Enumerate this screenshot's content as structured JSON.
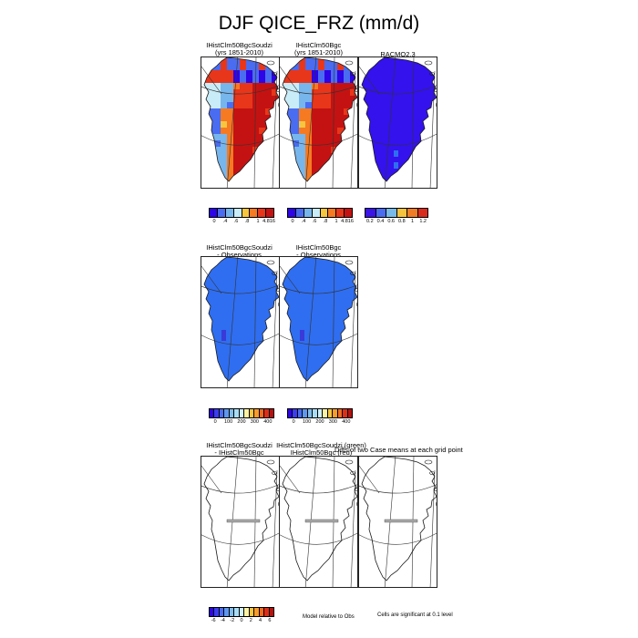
{
  "figure_title": "DJF QICE_FRZ (mm/d)",
  "colors": {
    "outline": "#1a1a1a",
    "grid": "#333333",
    "scale_a": [
      "#2d05e6",
      "#4a6cf0",
      "#77b6ec",
      "#c8ecf8",
      "#f7c63f",
      "#f57a22",
      "#e8361a",
      "#c41212"
    ],
    "scale_b": [
      "#3b14e8",
      "#4a6cf0",
      "#78baea",
      "#f5c33d",
      "#f07b25",
      "#d92b1c"
    ],
    "diff": "#2f6ef0",
    "racmo": "#3312ee",
    "racmo_spot": "#2f6ef0",
    "scale_diff": [
      "#2d05e6",
      "#3c3cf0",
      "#4a6cf0",
      "#5f97ef",
      "#80bdea",
      "#a8dcf5",
      "#d2f1fb",
      "#fbf2a3",
      "#f7c63f",
      "#f79b2b",
      "#f06a21",
      "#dc2e17",
      "#b4120f"
    ],
    "scale_sig": [
      "#2d05e6",
      "#3c3cf0",
      "#4a6cf0",
      "#5f97ef",
      "#80bdea",
      "#a8dcf5",
      "#d2f1fb",
      "#fbf2a3",
      "#f7c63f",
      "#f79b2b",
      "#f06a21",
      "#dc2e17",
      "#b4120f"
    ]
  },
  "panels": {
    "r1c1": {
      "title_lines": [
        "IHistClm50BgcSoudzi",
        "(yrs 1851-2010)"
      ]
    },
    "r1c2": {
      "title_lines": [
        "IHistClm50Bgc",
        "(yrs 1851-2010)"
      ]
    },
    "r1c3": {
      "title_lines": [
        "RACMO2.3"
      ]
    },
    "r2c1": {
      "title_lines": [
        "IHistClm50BgcSoudzi",
        "- Observations"
      ]
    },
    "r2c2": {
      "title_lines": [
        "IHistClm50Bgc",
        "- Observations"
      ]
    },
    "r3c1": {
      "title_lines": [
        "IHistClm50BgcSoudzi",
        "- IHistClm50Bgc"
      ]
    },
    "r3c2": {
      "title_lines": [
        "IHistClm50BgcSoudzi (green)",
        "IHistClm50Bgc (red)"
      ]
    },
    "r3c3": {
      "title_lines": []
    }
  },
  "overlay_text": "Diffs of two Case means at each grid point",
  "colorbars": {
    "cb1": {
      "ticks": [
        "0",
        ".4",
        ".6",
        ".8",
        "1",
        "4.816"
      ]
    },
    "cb2": {
      "ticks": [
        "0",
        ".4",
        ".6",
        ".8",
        "1",
        "4.816"
      ]
    },
    "cb3": {
      "ticks": [
        "0.2",
        "0.4",
        "0.6",
        "0.8",
        "1",
        "1.2"
      ]
    },
    "cb4": {
      "ticks": [
        "0",
        "100",
        "200",
        "300",
        "400"
      ]
    },
    "cb5": {
      "ticks": [
        "0",
        "100",
        "200",
        "300",
        "400"
      ]
    },
    "cb6": {
      "ticks": [
        "-6",
        "-4",
        "-2",
        "0",
        "2",
        "4",
        "6"
      ]
    }
  },
  "footnotes": {
    "model_relative": "Model relative to Obs",
    "significance": "Cells are significant at 0.1 level"
  },
  "chart_data": {
    "type": "heatmap",
    "title": "DJF QICE_FRZ (mm/d)",
    "region": "Greenland",
    "season": "DJF",
    "variable": "QICE_FRZ",
    "units": "mm/d",
    "panels": [
      {
        "title": "IHistClm50BgcSoudzi (yrs 1851-2010)",
        "colorbar_ticks": [
          0,
          0.4,
          0.6,
          0.8,
          1,
          4.816
        ],
        "pattern": "high values (~4.8) over western and southern ice sheet, low values (~0) in northern interior"
      },
      {
        "title": "IHistClm50Bgc (yrs 1851-2010)",
        "colorbar_ticks": [
          0,
          0.4,
          0.6,
          0.8,
          1,
          4.816
        ],
        "pattern": "nearly identical to IHistClm50BgcSoudzi"
      },
      {
        "title": "RACMO2.3",
        "colorbar_ticks": [
          0.2,
          0.4,
          0.6,
          0.8,
          1,
          1.2
        ],
        "pattern": "uniform low values (~0.2) across the ice sheet"
      },
      {
        "title": "IHistClm50BgcSoudzi - Observations",
        "colorbar_ticks": [
          0,
          100,
          200,
          300,
          400
        ],
        "pattern": "uniform value near 0 across the ice sheet"
      },
      {
        "title": "IHistClm50Bgc - Observations",
        "colorbar_ticks": [
          0,
          100,
          200,
          300,
          400
        ],
        "pattern": "uniform value near 0 across the ice sheet"
      },
      {
        "title": "IHistClm50BgcSoudzi - IHistClm50Bgc",
        "colorbar_ticks": [
          -6,
          -4,
          -2,
          0,
          2,
          4,
          6
        ],
        "pattern": "no colored cells (differences not shown)"
      },
      {
        "title": "IHistClm50BgcSoudzi (green) IHistClm50Bgc (red)",
        "pattern": "outline only"
      },
      {
        "title": "Diffs of two Case means at each grid point",
        "pattern": "outline only; cells significant at 0.1 level"
      }
    ]
  }
}
